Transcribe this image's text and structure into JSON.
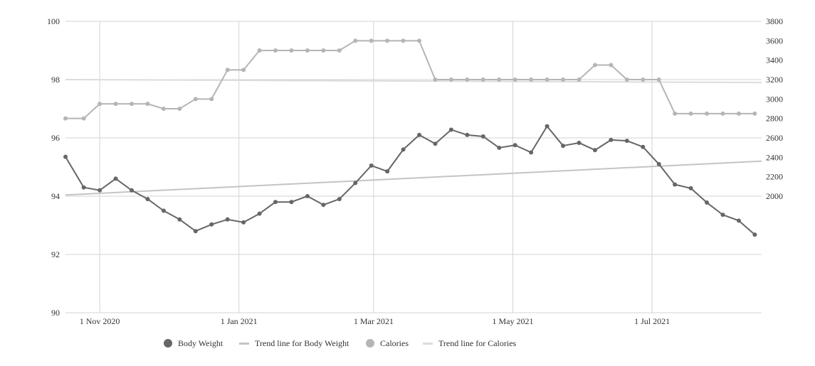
{
  "chart_data": {
    "type": "line",
    "title": "",
    "xlabel": "",
    "ylabel_left": "",
    "ylabel_right": "",
    "x_ticks": [
      "1 Nov 2020",
      "1 Jan 2021",
      "1 Mar 2021",
      "1 May 2021",
      "1 Jul 2021"
    ],
    "x_tick_dates": [
      "2020-11-01",
      "2021-01-01",
      "2021-03-01",
      "2021-05-01",
      "2021-07-01"
    ],
    "xlim": [
      "2020-10-17",
      "2021-08-18"
    ],
    "y_left": {
      "ylim": [
        90,
        100
      ],
      "ticks": [
        "90",
        "92",
        "94",
        "96",
        "98",
        "100"
      ]
    },
    "y_right": {
      "ylim": [
        800,
        3800
      ],
      "ticks": [
        "2000",
        "2200",
        "2400",
        "2600",
        "2800",
        "3000",
        "3200",
        "3400",
        "3600",
        "3800"
      ]
    },
    "grid": true,
    "legend_position": "bottom",
    "series": [
      {
        "name": "Body Weight",
        "axis": "left",
        "color": "#666666",
        "x": [
          "2020-10-17",
          "2020-10-25",
          "2020-11-01",
          "2020-11-08",
          "2020-11-15",
          "2020-11-22",
          "2020-11-29",
          "2020-12-06",
          "2020-12-13",
          "2020-12-20",
          "2020-12-27",
          "2021-01-03",
          "2021-01-10",
          "2021-01-17",
          "2021-01-24",
          "2021-01-31",
          "2021-02-07",
          "2021-02-14",
          "2021-02-21",
          "2021-02-28",
          "2021-03-07",
          "2021-03-14",
          "2021-03-21",
          "2021-03-28",
          "2021-04-04",
          "2021-04-11",
          "2021-04-18",
          "2021-04-25",
          "2021-05-02",
          "2021-05-09",
          "2021-05-16",
          "2021-05-23",
          "2021-05-30",
          "2021-06-06",
          "2021-06-13",
          "2021-06-20",
          "2021-06-27",
          "2021-07-04",
          "2021-07-11",
          "2021-07-18",
          "2021-07-25",
          "2021-08-01",
          "2021-08-08",
          "2021-08-15"
        ],
        "values": [
          95.35,
          94.3,
          94.2,
          94.6,
          94.2,
          93.9,
          93.5,
          93.2,
          92.8,
          93.03,
          93.2,
          93.1,
          93.4,
          93.8,
          93.8,
          94.0,
          93.7,
          93.9,
          94.45,
          95.05,
          94.85,
          95.6,
          96.1,
          95.8,
          96.28,
          96.1,
          96.05,
          95.66,
          95.75,
          95.5,
          96.4,
          95.73,
          95.83,
          95.58,
          95.93,
          95.9,
          95.69,
          95.1,
          94.4,
          94.27,
          93.78,
          93.36,
          93.16,
          92.68
        ]
      },
      {
        "name": "Trend line for Body Weight",
        "axis": "left",
        "color": "#c4c4c4",
        "x": [
          "2020-10-17",
          "2021-08-18"
        ],
        "values": [
          94.04,
          95.2
        ]
      },
      {
        "name": "Calories",
        "axis": "right",
        "color": "#b5b5b5",
        "x": [
          "2020-10-17",
          "2020-10-25",
          "2020-11-01",
          "2020-11-08",
          "2020-11-15",
          "2020-11-22",
          "2020-11-29",
          "2020-12-06",
          "2020-12-13",
          "2020-12-20",
          "2020-12-27",
          "2021-01-03",
          "2021-01-10",
          "2021-01-17",
          "2021-01-24",
          "2021-01-31",
          "2021-02-07",
          "2021-02-14",
          "2021-02-21",
          "2021-02-28",
          "2021-03-07",
          "2021-03-14",
          "2021-03-21",
          "2021-03-28",
          "2021-04-04",
          "2021-04-11",
          "2021-04-18",
          "2021-04-25",
          "2021-05-02",
          "2021-05-09",
          "2021-05-16",
          "2021-05-23",
          "2021-05-30",
          "2021-06-06",
          "2021-06-13",
          "2021-06-20",
          "2021-06-27",
          "2021-07-04",
          "2021-07-11",
          "2021-07-18",
          "2021-07-25",
          "2021-08-01",
          "2021-08-08",
          "2021-08-15"
        ],
        "values": [
          2800,
          2800,
          2950,
          2950,
          2950,
          2950,
          2900,
          2900,
          3000,
          3000,
          3300,
          3300,
          3500,
          3500,
          3500,
          3500,
          3500,
          3500,
          3600,
          3600,
          3600,
          3600,
          3600,
          3200,
          3200,
          3200,
          3200,
          3200,
          3200,
          3200,
          3200,
          3200,
          3200,
          3350,
          3350,
          3200,
          3200,
          3200,
          2850,
          2850,
          2850,
          2850,
          2850,
          2850
        ]
      },
      {
        "name": "Trend line for Calories",
        "axis": "right",
        "color": "#dcdcdc",
        "x": [
          "2020-10-17",
          "2021-08-18"
        ],
        "values": [
          3200,
          3170
        ]
      }
    ]
  }
}
